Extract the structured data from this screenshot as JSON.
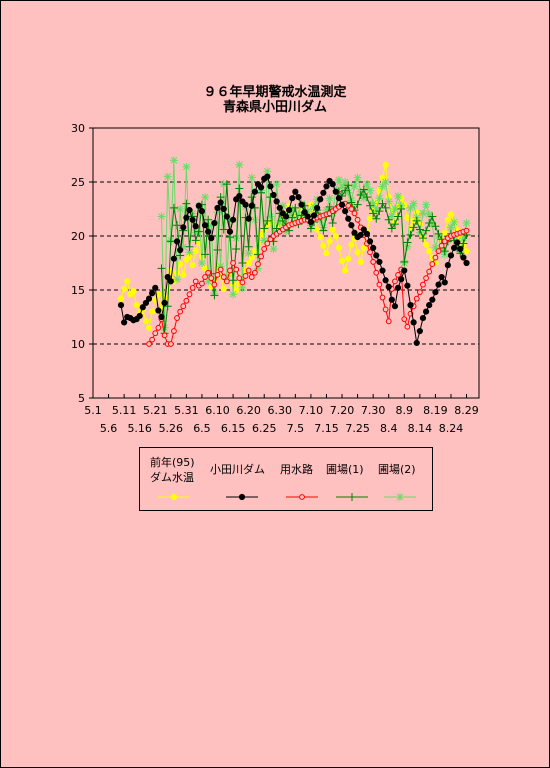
{
  "title_line1": "９６年早期警戒水温測定",
  "title_line2": "青森県小田川ダム",
  "legend": {
    "s0_line1": "前年(95)",
    "s0_line2": "ダム水温",
    "s1": "小田川ダム",
    "s2": "用水路",
    "s3": "圃場(1)",
    "s4": "圃場(2)"
  },
  "chart_data": {
    "type": "line",
    "title": "９６年早期警戒水温測定 青森県小田川ダム",
    "ylim": [
      5,
      30
    ],
    "y_ticks": [
      "5",
      "10",
      "15",
      "20",
      "25",
      "30"
    ],
    "grid_y": [
      10,
      15,
      20,
      25
    ],
    "x_tick_labels_row1": [
      "5.1",
      "5.11",
      "5.21",
      "5.31",
      "6.10",
      "6.20",
      "6.30",
      "7.10",
      "7.20",
      "7.30",
      "8.9",
      "8.19",
      "8.29"
    ],
    "x_tick_labels_row2": [
      "5.6",
      "5.16",
      "5.26",
      "6.5",
      "6.15",
      "6.25",
      "7.5",
      "7.15",
      "7.25",
      "8.4",
      "8.14",
      "8.24"
    ],
    "x_unit": "day index from 5.1",
    "series": [
      {
        "name": "前年(95) ダム水温",
        "color": "#FFFF00",
        "marker": "circle",
        "x": [
          9,
          10,
          11,
          12,
          13,
          14,
          15,
          16,
          17,
          18,
          19,
          20,
          21,
          22,
          23,
          24,
          25,
          26,
          27,
          28,
          29,
          30,
          31,
          32,
          33,
          34,
          35,
          36,
          37,
          38,
          39,
          40,
          41,
          42,
          43,
          44,
          45,
          46,
          47,
          48,
          49,
          50,
          51,
          52,
          53,
          54,
          55,
          56,
          57,
          58,
          59,
          60,
          61,
          62,
          63,
          64,
          65,
          66,
          67,
          68,
          69,
          70,
          71,
          72,
          73,
          74,
          75,
          76,
          77,
          78,
          79,
          80,
          81,
          82,
          83,
          84,
          85,
          86,
          87,
          88,
          89,
          90,
          91,
          92,
          93,
          94,
          95,
          96,
          97,
          98,
          99,
          100,
          101,
          102,
          103,
          104,
          105,
          106,
          107,
          108,
          109,
          110,
          111,
          112,
          113,
          114,
          115,
          116,
          117,
          118,
          119,
          120
        ],
        "y": [
          14.2,
          15.1,
          15.8,
          14.6,
          14.9,
          13.6,
          12.8,
          13.2,
          12.1,
          11.5,
          13.0,
          14.1,
          14.6,
          13.2,
          14.3,
          15.2,
          16.8,
          15.8,
          16.6,
          17.4,
          16.4,
          17.8,
          18.2,
          17.3,
          18.6,
          19.4,
          18.1,
          17.0,
          16.1,
          15.3,
          16.0,
          17.2,
          16.3,
          15.1,
          15.8,
          16.7,
          15.5,
          15.0,
          15.6,
          16.2,
          16.8,
          17.5,
          18.0,
          18.6,
          19.3,
          20.1,
          20.6,
          21.1,
          21.3,
          21.0,
          20.8,
          21.2,
          21.6,
          22.1,
          22.8,
          22.0,
          21.3,
          21.9,
          22.4,
          21.6,
          22.2,
          22.9,
          21.8,
          20.6,
          19.9,
          19.1,
          18.4,
          19.5,
          20.6,
          20.0,
          18.9,
          17.7,
          16.8,
          17.9,
          19.2,
          19.8,
          18.5,
          17.6,
          18.9,
          20.4,
          21.6,
          22.3,
          23.1,
          24.2,
          25.4,
          26.6,
          23.6,
          22.4,
          21.3,
          22.7,
          23.5,
          22.9,
          21.7,
          20.8,
          21.5,
          22.2,
          21.1,
          19.9,
          19.2,
          18.6,
          18.0,
          17.5,
          18.7,
          19.6,
          20.3,
          21.5,
          22.0,
          21.3,
          20.6,
          19.8,
          19.2,
          18.6
        ]
      },
      {
        "name": "小田川ダム",
        "color": "#000000",
        "marker": "circle",
        "x": [
          9,
          10,
          11,
          12,
          13,
          14,
          15,
          16,
          17,
          18,
          19,
          20,
          21,
          22,
          23,
          24,
          25,
          26,
          27,
          28,
          29,
          30,
          31,
          32,
          33,
          34,
          35,
          36,
          37,
          38,
          39,
          40,
          41,
          42,
          43,
          44,
          45,
          46,
          47,
          48,
          49,
          50,
          51,
          52,
          53,
          54,
          55,
          56,
          57,
          58,
          59,
          60,
          61,
          62,
          63,
          64,
          65,
          66,
          67,
          68,
          69,
          70,
          71,
          72,
          73,
          74,
          75,
          76,
          77,
          78,
          79,
          80,
          81,
          82,
          83,
          84,
          85,
          86,
          87,
          88,
          89,
          90,
          91,
          92,
          93,
          94,
          95,
          96,
          97,
          98,
          99,
          100,
          101,
          102,
          103,
          104,
          105,
          106,
          107,
          108,
          109,
          110,
          111,
          112,
          113,
          114,
          115,
          116,
          117,
          118,
          119,
          120
        ],
        "y": [
          13.6,
          12.0,
          12.5,
          12.4,
          12.2,
          12.3,
          12.6,
          13.4,
          13.8,
          14.2,
          14.7,
          15.2,
          13.1,
          12.5,
          13.8,
          16.2,
          15.8,
          17.9,
          19.5,
          18.7,
          20.8,
          21.7,
          22.4,
          21.5,
          20.9,
          22.8,
          22.3,
          21.0,
          20.4,
          19.8,
          21.2,
          22.6,
          23.1,
          22.5,
          21.8,
          20.4,
          21.5,
          23.4,
          23.7,
          23.2,
          22.9,
          21.6,
          22.8,
          24.1,
          24.8,
          24.5,
          25.3,
          25.5,
          24.6,
          23.8,
          23.2,
          22.6,
          22.1,
          21.8,
          22.4,
          23.5,
          24.1,
          23.6,
          22.9,
          22.2,
          21.8,
          21.3,
          21.9,
          22.6,
          23.4,
          24.0,
          24.6,
          25.1,
          24.8,
          24.1,
          23.5,
          22.9,
          22.3,
          21.6,
          21.0,
          20.3,
          19.9,
          20.1,
          20.6,
          20.2,
          19.5,
          18.9,
          18.2,
          17.6,
          16.8,
          15.9,
          15.3,
          14.1,
          13.5,
          15.2,
          16.0,
          16.8,
          15.4,
          13.6,
          12.0,
          10.1,
          11.2,
          12.4,
          13.0,
          13.6,
          14.1,
          14.8,
          15.5,
          16.2,
          15.7,
          17.3,
          18.2,
          18.9,
          19.4,
          18.8,
          18.0,
          17.5
        ]
      },
      {
        "name": "用水路",
        "color": "#FF0000",
        "marker": "open-circle",
        "x": [
          18,
          19,
          20,
          21,
          22,
          23,
          24,
          25,
          26,
          27,
          28,
          29,
          30,
          31,
          32,
          33,
          34,
          35,
          36,
          37,
          38,
          39,
          40,
          41,
          42,
          43,
          44,
          45,
          46,
          47,
          48,
          49,
          50,
          51,
          52,
          53,
          54,
          55,
          56,
          57,
          58,
          59,
          60,
          61,
          62,
          63,
          64,
          65,
          66,
          67,
          68,
          69,
          70,
          71,
          72,
          73,
          74,
          75,
          76,
          77,
          78,
          79,
          80,
          81,
          82,
          83,
          84,
          85,
          86,
          87,
          88,
          89,
          90,
          91,
          92,
          93,
          94,
          95,
          96,
          97,
          98,
          99,
          100,
          101,
          102,
          103,
          104,
          105,
          106,
          107,
          108,
          109,
          110,
          111,
          112,
          113,
          114,
          115,
          116,
          117,
          118,
          119,
          120
        ],
        "y": [
          10.0,
          10.4,
          11.0,
          11.5,
          12.3,
          10.8,
          10.0,
          10.0,
          11.2,
          12.4,
          13.0,
          13.5,
          14.0,
          14.6,
          15.2,
          15.8,
          15.4,
          15.6,
          16.2,
          16.6,
          16.1,
          15.5,
          16.4,
          16.9,
          16.2,
          15.8,
          16.8,
          17.5,
          16.9,
          16.1,
          15.7,
          16.3,
          16.8,
          16.2,
          16.6,
          17.4,
          18.1,
          18.8,
          19.3,
          19.7,
          20.0,
          20.2,
          20.4,
          20.6,
          20.8,
          21.0,
          21.1,
          21.2,
          21.3,
          21.4,
          21.5,
          21.5,
          21.6,
          21.6,
          21.7,
          21.8,
          21.9,
          22.0,
          22.1,
          22.3,
          22.5,
          22.7,
          22.9,
          23.0,
          22.8,
          22.5,
          22.1,
          21.5,
          20.8,
          20.1,
          19.3,
          18.5,
          17.6,
          16.6,
          15.5,
          14.3,
          13.2,
          12.1,
          15.1,
          15.8,
          16.4,
          16.9,
          12.3,
          11.6,
          12.8,
          13.5,
          14.2,
          14.8,
          15.5,
          16.1,
          16.7,
          17.4,
          18.0,
          18.6,
          19.1,
          19.5,
          19.8,
          20.0,
          20.1,
          20.2,
          20.3,
          20.4,
          20.5
        ]
      },
      {
        "name": "圃場(1)",
        "color": "#008000",
        "marker": "plus",
        "x": [
          22,
          23,
          24,
          25,
          26,
          27,
          28,
          29,
          30,
          31,
          32,
          33,
          34,
          35,
          36,
          37,
          38,
          39,
          40,
          41,
          42,
          43,
          44,
          45,
          46,
          47,
          48,
          49,
          50,
          51,
          52,
          53,
          54,
          55,
          56,
          57,
          58,
          59,
          60,
          61,
          62,
          63,
          64,
          65,
          66,
          67,
          68,
          69,
          70,
          71,
          72,
          73,
          74,
          75,
          76,
          77,
          78,
          79,
          80,
          81,
          82,
          83,
          84,
          85,
          86,
          87,
          88,
          89,
          90,
          91,
          92,
          93,
          94,
          95,
          96,
          97,
          98,
          99,
          100,
          101,
          102,
          103,
          104,
          105,
          106,
          107,
          108,
          109,
          110,
          111,
          112,
          113,
          114,
          115,
          116,
          117,
          118,
          119,
          120
        ],
        "y": [
          17.0,
          11.0,
          13.5,
          19.5,
          22.6,
          21.0,
          18.2,
          20.5,
          23.0,
          19.0,
          21.8,
          19.6,
          20.4,
          22.9,
          18.3,
          21.5,
          16.5,
          14.5,
          18.7,
          23.6,
          20.6,
          24.8,
          19.9,
          15.9,
          18.8,
          24.4,
          17.5,
          21.7,
          19.0,
          23.6,
          22.6,
          18.3,
          24.0,
          20.7,
          21.4,
          23.6,
          19.5,
          20.7,
          22.1,
          21.4,
          21.0,
          20.5,
          21.7,
          22.6,
          21.1,
          21.9,
          22.8,
          21.5,
          20.7,
          21.3,
          22.4,
          21.8,
          20.5,
          21.8,
          22.7,
          21.2,
          22.5,
          24.1,
          23.7,
          24.2,
          24.7,
          23.1,
          22.4,
          22.9,
          23.8,
          24.3,
          23.6,
          22.8,
          22.1,
          21.6,
          22.3,
          23.0,
          22.6,
          21.5,
          20.7,
          21.1,
          21.8,
          22.5,
          17.6,
          19.4,
          20.1,
          20.8,
          21.4,
          20.6,
          19.8,
          20.5,
          21.2,
          21.8,
          20.9,
          20.2,
          19.7,
          18.6,
          19.5,
          20.2,
          19.6,
          18.9,
          18.4,
          19.3,
          20.1
        ]
      },
      {
        "name": "圃場(2)",
        "color": "#66DD66",
        "marker": "star",
        "x": [
          22,
          23,
          24,
          25,
          26,
          27,
          28,
          29,
          30,
          31,
          32,
          33,
          34,
          35,
          36,
          37,
          38,
          39,
          40,
          41,
          42,
          43,
          44,
          45,
          46,
          47,
          48,
          49,
          50,
          51,
          52,
          53,
          54,
          55,
          56,
          57,
          58,
          59,
          60,
          61,
          62,
          63,
          64,
          65,
          66,
          67,
          68,
          69,
          70,
          71,
          72,
          73,
          74,
          75,
          76,
          77,
          78,
          79,
          80,
          81,
          82,
          83,
          84,
          85,
          86,
          87,
          88,
          89,
          90,
          91,
          92,
          93,
          94,
          95,
          96,
          97,
          98,
          99,
          100,
          101,
          102,
          103,
          104,
          105,
          106,
          107,
          108,
          109,
          110,
          111,
          112,
          113,
          114,
          115,
          116,
          117,
          118,
          119,
          120
        ],
        "y": [
          21.8,
          11.5,
          25.5,
          19.6,
          27.0,
          16.0,
          22.5,
          19.0,
          26.4,
          18.5,
          22.1,
          20.3,
          22.8,
          17.5,
          23.6,
          15.8,
          21.0,
          14.7,
          22.2,
          17.2,
          24.8,
          16.3,
          21.5,
          14.6,
          19.8,
          26.6,
          15.2,
          22.7,
          18.4,
          25.4,
          21.5,
          17.0,
          24.2,
          19.6,
          26.0,
          21.8,
          18.8,
          24.8,
          21.2,
          22.8,
          20.4,
          21.9,
          22.5,
          21.2,
          22.0,
          23.0,
          21.6,
          22.3,
          21.0,
          22.7,
          23.4,
          21.5,
          20.8,
          22.4,
          23.5,
          22.1,
          24.2,
          25.2,
          24.5,
          25.0,
          24.0,
          23.3,
          24.6,
          25.4,
          24.1,
          23.5,
          24.8,
          24.2,
          23.0,
          22.4,
          23.5,
          24.6,
          25.0,
          23.2,
          21.8,
          22.5,
          23.7,
          22.8,
          17.5,
          19.0,
          22.6,
          23.0,
          21.7,
          20.3,
          22.1,
          22.9,
          22.0,
          21.1,
          18.9,
          20.0,
          18.7,
          18.3,
          19.6,
          20.8,
          21.3,
          19.5,
          18.6,
          19.8,
          21.2
        ]
      }
    ]
  }
}
